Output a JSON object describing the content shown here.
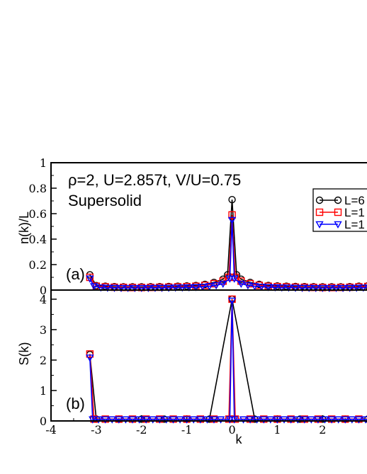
{
  "chart_data": [
    {
      "panel_label": "(a)",
      "type": "line",
      "title": "",
      "annotation": "ρ=2, U=2.857t, V/U=0.75",
      "annotation2": "Supersolid",
      "xlabel": "",
      "ylabel": "n(k)/L",
      "xlim": [
        -4,
        3.2
      ],
      "ylim": [
        0,
        1
      ],
      "yticks": [
        0,
        0.2,
        0.4,
        0.6,
        0.8,
        1
      ],
      "ytick_labels": [
        "0",
        "0.2",
        "0.4",
        "0.6",
        "0.8",
        "1"
      ],
      "legend_position": "top-right",
      "series": [
        {
          "name": "L=6",
          "marker": "circle",
          "color": "#000000",
          "points": [
            [
              -3.1416,
              0.12
            ],
            [
              -3.0,
              0.035
            ],
            [
              -2.8,
              0.03
            ],
            [
              -2.6,
              0.027
            ],
            [
              -2.4,
              0.025
            ],
            [
              -2.2,
              0.025
            ],
            [
              -2.0,
              0.025
            ],
            [
              -1.8,
              0.026
            ],
            [
              -1.6,
              0.027
            ],
            [
              -1.4,
              0.028
            ],
            [
              -1.2,
              0.03
            ],
            [
              -1.0,
              0.032
            ],
            [
              -0.8,
              0.036
            ],
            [
              -0.6,
              0.045
            ],
            [
              -0.4,
              0.06
            ],
            [
              -0.2,
              0.085
            ],
            [
              -0.1,
              0.12
            ],
            [
              0.0,
              0.71
            ],
            [
              0.1,
              0.12
            ],
            [
              0.2,
              0.085
            ],
            [
              0.4,
              0.06
            ],
            [
              0.6,
              0.045
            ],
            [
              0.8,
              0.036
            ],
            [
              1.0,
              0.032
            ],
            [
              1.2,
              0.03
            ],
            [
              1.4,
              0.028
            ],
            [
              1.6,
              0.027
            ],
            [
              1.8,
              0.026
            ],
            [
              2.0,
              0.025
            ],
            [
              2.2,
              0.025
            ],
            [
              2.4,
              0.025
            ],
            [
              2.6,
              0.027
            ],
            [
              2.8,
              0.03
            ],
            [
              3.0,
              0.033
            ]
          ]
        },
        {
          "name": "L=1",
          "marker": "square",
          "color": "#ff0000",
          "points": [
            [
              -3.1416,
              0.1
            ],
            [
              -3.0,
              0.03
            ],
            [
              -2.8,
              0.025
            ],
            [
              -2.6,
              0.022
            ],
            [
              -2.4,
              0.021
            ],
            [
              -2.2,
              0.02
            ],
            [
              -2.0,
              0.02
            ],
            [
              -1.8,
              0.021
            ],
            [
              -1.6,
              0.022
            ],
            [
              -1.4,
              0.023
            ],
            [
              -1.2,
              0.025
            ],
            [
              -1.0,
              0.027
            ],
            [
              -0.8,
              0.03
            ],
            [
              -0.6,
              0.037
            ],
            [
              -0.4,
              0.05
            ],
            [
              -0.2,
              0.07
            ],
            [
              -0.07,
              0.1
            ],
            [
              0.0,
              0.59
            ],
            [
              0.07,
              0.1
            ],
            [
              0.2,
              0.07
            ],
            [
              0.4,
              0.05
            ],
            [
              0.6,
              0.037
            ],
            [
              0.8,
              0.03
            ],
            [
              1.0,
              0.027
            ],
            [
              1.2,
              0.025
            ],
            [
              1.4,
              0.023
            ],
            [
              1.6,
              0.022
            ],
            [
              1.8,
              0.021
            ],
            [
              2.0,
              0.02
            ],
            [
              2.2,
              0.02
            ],
            [
              2.4,
              0.021
            ],
            [
              2.6,
              0.022
            ],
            [
              2.8,
              0.025
            ],
            [
              3.0,
              0.028
            ]
          ]
        },
        {
          "name": "L=1",
          "marker": "triangle-down",
          "color": "#0000ff",
          "points": [
            [
              -3.1416,
              0.09
            ],
            [
              -3.05,
              0.03
            ],
            [
              -2.9,
              0.02
            ],
            [
              -2.75,
              0.018
            ],
            [
              -2.6,
              0.017
            ],
            [
              -2.45,
              0.016
            ],
            [
              -2.3,
              0.016
            ],
            [
              -2.15,
              0.016
            ],
            [
              -2.0,
              0.016
            ],
            [
              -1.85,
              0.016
            ],
            [
              -1.7,
              0.017
            ],
            [
              -1.55,
              0.017
            ],
            [
              -1.4,
              0.018
            ],
            [
              -1.25,
              0.019
            ],
            [
              -1.1,
              0.02
            ],
            [
              -0.95,
              0.021
            ],
            [
              -0.8,
              0.023
            ],
            [
              -0.65,
              0.026
            ],
            [
              -0.5,
              0.03
            ],
            [
              -0.35,
              0.037
            ],
            [
              -0.2,
              0.05
            ],
            [
              -0.05,
              0.09
            ],
            [
              0.0,
              0.55
            ],
            [
              0.05,
              0.09
            ],
            [
              0.2,
              0.05
            ],
            [
              0.35,
              0.037
            ],
            [
              0.5,
              0.03
            ],
            [
              0.65,
              0.026
            ],
            [
              0.8,
              0.023
            ],
            [
              0.95,
              0.021
            ],
            [
              1.1,
              0.02
            ],
            [
              1.25,
              0.019
            ],
            [
              1.4,
              0.018
            ],
            [
              1.55,
              0.017
            ],
            [
              1.7,
              0.017
            ],
            [
              1.85,
              0.016
            ],
            [
              2.0,
              0.016
            ],
            [
              2.15,
              0.016
            ],
            [
              2.3,
              0.016
            ],
            [
              2.45,
              0.016
            ],
            [
              2.6,
              0.017
            ],
            [
              2.75,
              0.018
            ],
            [
              2.9,
              0.019
            ],
            [
              3.05,
              0.02
            ]
          ]
        }
      ]
    },
    {
      "panel_label": "(b)",
      "type": "line",
      "title": "",
      "xlabel": "k",
      "ylabel": "S(k)",
      "xlim": [
        -4,
        3.2
      ],
      "ylim": [
        0,
        4.3
      ],
      "xticks": [
        -4,
        -3,
        -2,
        -1,
        0,
        1,
        2
      ],
      "xtick_labels": [
        "-4",
        "-3",
        "-2",
        "-1",
        "0",
        "1",
        "2"
      ],
      "yticks": [
        0,
        1,
        2,
        3,
        4
      ],
      "ytick_labels": [
        "0",
        "1",
        "2",
        "3",
        "4"
      ],
      "series": [
        {
          "name": "L=6",
          "marker": "circle",
          "color": "#000000",
          "points": [
            [
              -3.1416,
              2.18
            ],
            [
              -3.0,
              0.06
            ],
            [
              -2.5,
              0.06
            ],
            [
              -2.0,
              0.06
            ],
            [
              -1.5,
              0.06
            ],
            [
              -1.0,
              0.06
            ],
            [
              -0.5,
              0.06
            ],
            [
              0.0,
              4.0
            ],
            [
              0.5,
              0.06
            ],
            [
              1.0,
              0.06
            ],
            [
              1.5,
              0.06
            ],
            [
              2.0,
              0.06
            ],
            [
              2.5,
              0.06
            ],
            [
              3.0,
              0.06
            ]
          ]
        },
        {
          "name": "L=1",
          "marker": "square",
          "color": "#ff0000",
          "points": [
            [
              -3.1416,
              2.2
            ],
            [
              -3.05,
              0.06
            ],
            [
              -2.8,
              0.06
            ],
            [
              -2.5,
              0.06
            ],
            [
              -2.2,
              0.06
            ],
            [
              -1.9,
              0.06
            ],
            [
              -1.6,
              0.06
            ],
            [
              -1.3,
              0.06
            ],
            [
              -1.0,
              0.06
            ],
            [
              -0.7,
              0.06
            ],
            [
              -0.4,
              0.06
            ],
            [
              -0.07,
              0.06
            ],
            [
              0.0,
              4.0
            ],
            [
              0.07,
              0.06
            ],
            [
              0.4,
              0.06
            ],
            [
              0.7,
              0.06
            ],
            [
              1.0,
              0.06
            ],
            [
              1.3,
              0.06
            ],
            [
              1.6,
              0.06
            ],
            [
              1.9,
              0.06
            ],
            [
              2.2,
              0.06
            ],
            [
              2.5,
              0.06
            ],
            [
              2.8,
              0.06
            ],
            [
              3.1,
              0.06
            ]
          ]
        },
        {
          "name": "L=1",
          "marker": "triangle-down",
          "color": "#0000ff",
          "points": [
            [
              -3.1416,
              2.08
            ],
            [
              -3.08,
              0.05
            ],
            [
              -2.95,
              0.05
            ],
            [
              -2.8,
              0.05
            ],
            [
              -2.65,
              0.05
            ],
            [
              -2.5,
              0.05
            ],
            [
              -2.35,
              0.05
            ],
            [
              -2.2,
              0.05
            ],
            [
              -2.05,
              0.05
            ],
            [
              -1.9,
              0.05
            ],
            [
              -1.75,
              0.05
            ],
            [
              -1.6,
              0.05
            ],
            [
              -1.45,
              0.05
            ],
            [
              -1.3,
              0.05
            ],
            [
              -1.15,
              0.05
            ],
            [
              -1.0,
              0.05
            ],
            [
              -0.85,
              0.05
            ],
            [
              -0.7,
              0.05
            ],
            [
              -0.55,
              0.05
            ],
            [
              -0.4,
              0.05
            ],
            [
              -0.25,
              0.05
            ],
            [
              -0.05,
              0.05
            ],
            [
              0.0,
              3.95
            ],
            [
              0.05,
              0.05
            ],
            [
              0.25,
              0.05
            ],
            [
              0.4,
              0.05
            ],
            [
              0.55,
              0.05
            ],
            [
              0.7,
              0.05
            ],
            [
              0.85,
              0.05
            ],
            [
              1.0,
              0.05
            ],
            [
              1.15,
              0.05
            ],
            [
              1.3,
              0.05
            ],
            [
              1.45,
              0.05
            ],
            [
              1.6,
              0.05
            ],
            [
              1.75,
              0.05
            ],
            [
              1.9,
              0.05
            ],
            [
              2.05,
              0.05
            ],
            [
              2.2,
              0.05
            ],
            [
              2.35,
              0.05
            ],
            [
              2.5,
              0.05
            ],
            [
              2.65,
              0.05
            ],
            [
              2.8,
              0.05
            ],
            [
              2.95,
              0.05
            ],
            [
              3.1,
              0.05
            ]
          ]
        }
      ]
    }
  ]
}
